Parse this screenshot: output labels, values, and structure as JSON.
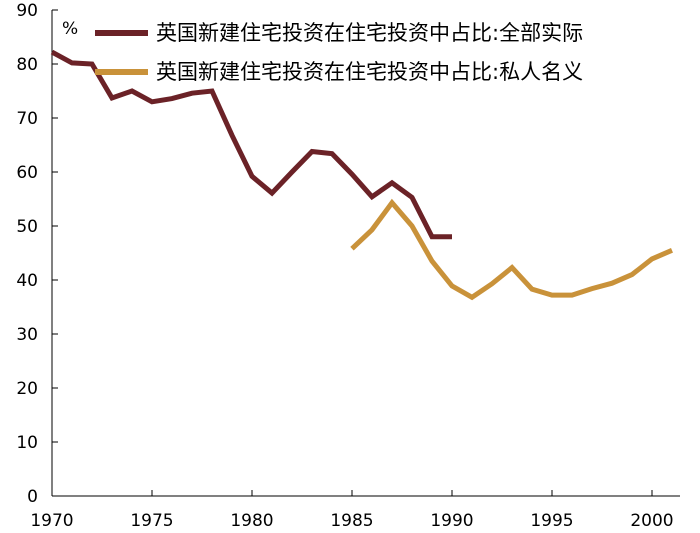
{
  "chart_data": {
    "type": "line",
    "unit_label": "%",
    "xlim": [
      1970,
      2002
    ],
    "ylim": [
      0,
      90
    ],
    "x_ticks": [
      "1970",
      "1975",
      "1980",
      "1985",
      "1990",
      "1995",
      "2000"
    ],
    "y_ticks": [
      "0",
      "10",
      "20",
      "30",
      "40",
      "50",
      "60",
      "70",
      "80",
      "90"
    ],
    "legend_position": "top-right",
    "grid": false,
    "series": [
      {
        "name": "英国新建住宅投资在住宅投资中占比:全部实际",
        "color": "#6b2227",
        "x": [
          1970,
          1971,
          1972,
          1973,
          1974,
          1975,
          1976,
          1977,
          1978,
          1979,
          1980,
          1981,
          1982,
          1983,
          1984,
          1985,
          1986,
          1987,
          1988,
          1989,
          1990
        ],
        "y": [
          82.2,
          80.2,
          80.0,
          73.7,
          75.0,
          73.0,
          73.6,
          74.6,
          75.0,
          66.8,
          59.2,
          56.1,
          60.0,
          63.8,
          63.4,
          59.6,
          55.4,
          58.0,
          55.3,
          48.0,
          48.0
        ]
      },
      {
        "name": "英国新建住宅投资在住宅投资中占比:私人名义",
        "color": "#c9923a",
        "x": [
          1985,
          1986,
          1987,
          1988,
          1989,
          1990,
          1991,
          1992,
          1993,
          1994,
          1995,
          1996,
          1997,
          1998,
          1999,
          2000,
          2001
        ],
        "y": [
          45.8,
          49.3,
          54.3,
          50.0,
          43.5,
          38.9,
          36.8,
          39.3,
          42.3,
          38.3,
          37.2,
          37.2,
          38.4,
          39.4,
          41.0,
          43.9,
          45.5
        ]
      }
    ]
  }
}
